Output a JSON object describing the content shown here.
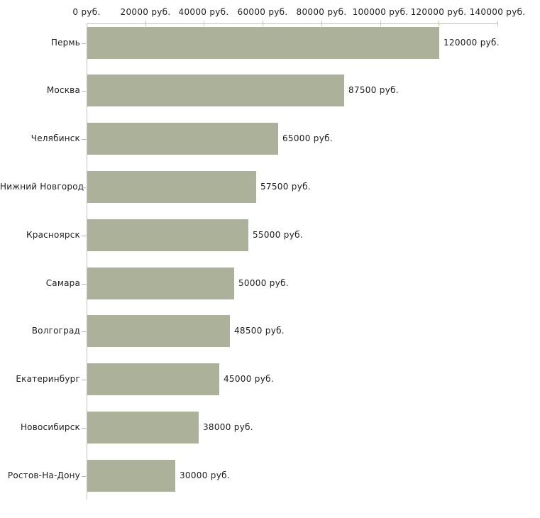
{
  "chart_data": {
    "type": "bar",
    "orientation": "horizontal",
    "title": "",
    "xlabel": "",
    "ylabel": "",
    "unit_suffix": " руб.",
    "categories": [
      "Пермь",
      "Москва",
      "Челябинск",
      "Нижний Новгород",
      "Красноярск",
      "Самара",
      "Волгоград",
      "Екатеринбург",
      "Новосибирск",
      "Ростов-На-Дону"
    ],
    "values": [
      120000,
      87500,
      65000,
      57500,
      55000,
      50000,
      48500,
      45000,
      38000,
      30000
    ],
    "value_labels": [
      "120000 руб.",
      "87500 руб.",
      "65000 руб.",
      "57500 руб.",
      "55000 руб.",
      "50000 руб.",
      "48500 руб.",
      "45000 руб.",
      "38000 руб.",
      "30000 руб."
    ],
    "x_ticks": [
      0,
      20000,
      40000,
      60000,
      80000,
      100000,
      120000,
      140000
    ],
    "x_tick_labels": [
      "0 руб.",
      "20000 руб.",
      "40000 руб.",
      "60000 руб.",
      "80000 руб.",
      "100000 руб.",
      "120000 руб.",
      "140000 руб."
    ],
    "xlim": [
      0,
      140000
    ],
    "grid": false,
    "legend_position": "none",
    "colors": {
      "bar": "#acb29a",
      "axis_line": "#c3c3c3",
      "tick_mark": "#c8caa4",
      "category_tick": "#b5b5b5",
      "text": "#1c1c1c",
      "background": "#ffffff"
    }
  }
}
